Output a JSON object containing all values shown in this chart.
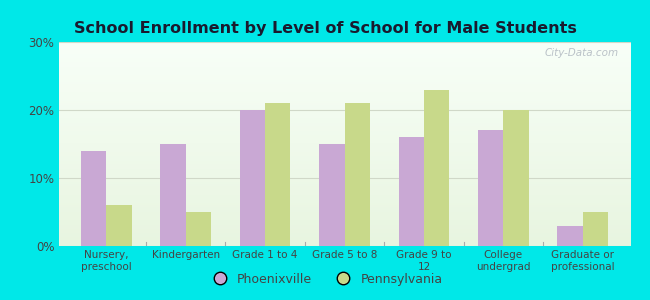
{
  "title": "School Enrollment by Level of School for Male Students",
  "categories": [
    "Nursery,\npreschool",
    "Kindergarten",
    "Grade 1 to 4",
    "Grade 5 to 8",
    "Grade 9 to\n12",
    "College\nundergrad",
    "Graduate or\nprofessional"
  ],
  "phoenixville": [
    14,
    15,
    20,
    15,
    16,
    17,
    3
  ],
  "pennsylvania": [
    6,
    5,
    21,
    21,
    23,
    20,
    5
  ],
  "bar_color_phoenix": "#c9a8d4",
  "bar_color_penn": "#c8d98a",
  "background_outer": "#00e8e8",
  "background_inner_grad_top": "#e8f5e0",
  "background_inner_grad_bottom": "#f8fff8",
  "yticks": [
    0,
    10,
    20,
    30
  ],
  "ylim": [
    0,
    30
  ],
  "ylabel_labels": [
    "0%",
    "10%",
    "20%",
    "30%"
  ],
  "legend_labels": [
    "Phoenixville",
    "Pennsylvania"
  ],
  "bar_width": 0.32,
  "watermark": "City-Data.com",
  "title_color": "#1a1a2e",
  "tick_label_color": "#444444",
  "grid_color": "#d0d8c8"
}
